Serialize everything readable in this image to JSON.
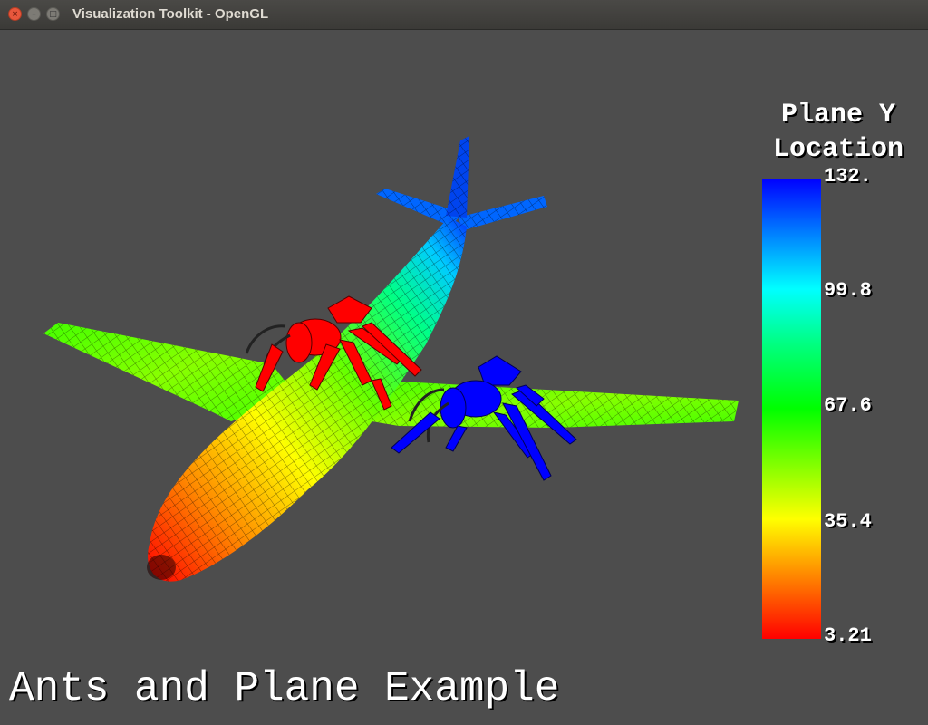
{
  "window": {
    "title": "Visualization Toolkit - OpenGL",
    "close_glyph": "×",
    "minimize_glyph": "–",
    "maximize_glyph": "□"
  },
  "scalar_bar": {
    "title_line1": "Plane Y",
    "title_line2": "Location",
    "labels": [
      "132.",
      "99.8",
      "67.6",
      "35.4",
      "3.21"
    ]
  },
  "caption": "Ants and Plane Example",
  "colors": {
    "background": "#4d4d4d",
    "ant_red": "#ff0000",
    "ant_blue": "#0000ff"
  }
}
